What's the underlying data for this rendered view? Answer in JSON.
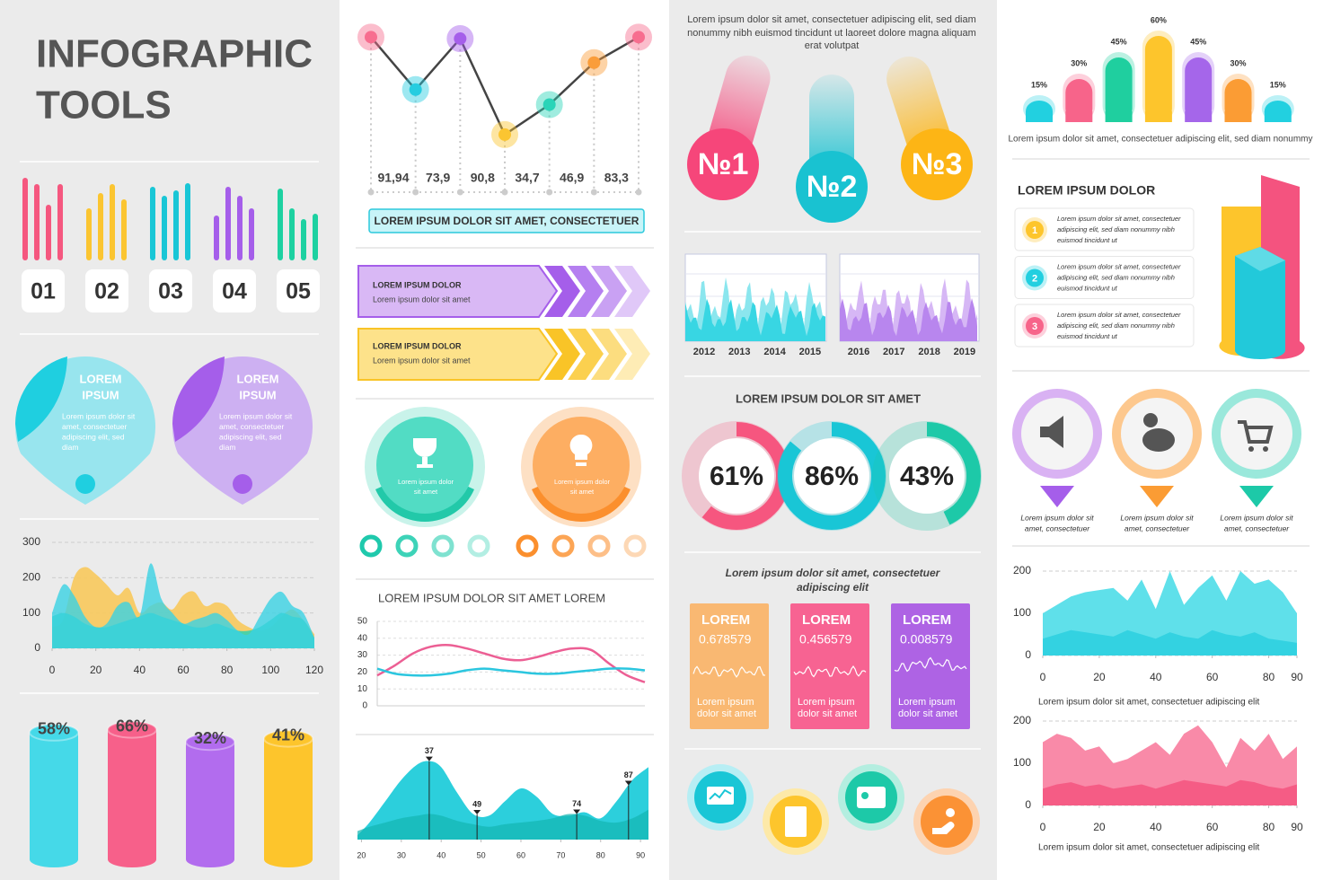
{
  "title_lines": [
    "INFOGRAPHIC",
    "TOOLS"
  ],
  "step_labels": [
    "01",
    "02",
    "03",
    "04",
    "05"
  ],
  "pins": [
    {
      "title_lines": [
        "LOREM",
        "IPSUM"
      ],
      "text_lines": [
        "Lorem ipsum dolor sit",
        "amet, consectetuer",
        "adipiscing elit, sed",
        "diam"
      ]
    },
    {
      "title_lines": [
        "LOREM",
        "IPSUM"
      ],
      "text_lines": [
        "Lorem ipsum dolor sit",
        "amet, consectetuer",
        "adipiscing elit, sed",
        "diam"
      ]
    }
  ],
  "area_chart": {
    "type": "area",
    "x": [
      0,
      5,
      10,
      15,
      20,
      25,
      30,
      35,
      40,
      45,
      50,
      55,
      60,
      65,
      70,
      75,
      80,
      85,
      90,
      95,
      100,
      105,
      110,
      115,
      120
    ],
    "series": [
      {
        "color": "#f8c95c",
        "values": [
          60,
          80,
          200,
          230,
          210,
          180,
          150,
          170,
          100,
          120,
          130,
          110,
          150,
          160,
          120,
          130,
          120,
          80,
          60,
          50,
          60,
          90,
          110,
          80,
          40
        ]
      },
      {
        "color": "#2fd1b0",
        "values": [
          90,
          100,
          90,
          70,
          60,
          60,
          70,
          80,
          90,
          100,
          90,
          80,
          70,
          60,
          60,
          70,
          60,
          50,
          50,
          60,
          80,
          100,
          90,
          80,
          30
        ]
      },
      {
        "color": "#3ad2e4",
        "values": [
          100,
          180,
          150,
          90,
          60,
          70,
          120,
          130,
          90,
          240,
          140,
          100,
          70,
          80,
          90,
          100,
          80,
          50,
          40,
          90,
          140,
          160,
          120,
          100,
          30
        ]
      }
    ],
    "xlim": [
      0,
      120
    ],
    "ylim": [
      0,
      300
    ],
    "xticks": [
      0,
      20,
      40,
      60,
      80,
      100,
      120
    ],
    "yticks": [
      0,
      100,
      200,
      300
    ],
    "grid": true
  },
  "cylinders": {
    "type": "bar",
    "values": [
      58,
      66,
      32,
      41
    ],
    "value_labels": [
      "58%",
      "66%",
      "32%",
      "41%"
    ],
    "colors": [
      "#45d9e8",
      "#f7608a",
      "#b26cee",
      "#fdc52c"
    ]
  },
  "point_line": {
    "type": "line",
    "values": [
      95,
      60,
      94,
      30,
      50,
      78,
      95
    ],
    "ylim": [
      0,
      100
    ],
    "colors": [
      "#f76d8f",
      "#26cde0",
      "#a55eea",
      "#fbc531",
      "#2ad4b8",
      "#fa9d3a",
      "#f76d8f"
    ],
    "readouts": [
      "91,94",
      "73,9",
      "90,8",
      "34,7",
      "46,9",
      "83,3"
    ]
  },
  "banner": "LOREM IPSUM DOLOR SIT AMET, CONSECTETUER",
  "arrows": [
    {
      "title": "LOREM IPSUM DOLOR",
      "text": "Lorem ipsum dolor sit amet"
    },
    {
      "title": "LOREM IPSUM DOLOR",
      "text": "Lorem ipsum dolor sit amet"
    }
  ],
  "badges": [
    {
      "text_lines": [
        "Lorem ipsum dolor",
        "sit amet"
      ]
    },
    {
      "text_lines": [
        "Lorem ipsum dolor",
        "sit amet"
      ]
    }
  ],
  "wave_chart": {
    "type": "line",
    "title": "LOREM IPSUM DOLOR SIT AMET LOREM",
    "series": [
      {
        "color": "#ec5f94",
        "values": [
          18,
          24,
          31,
          35,
          36,
          34,
          31,
          28,
          27,
          29,
          32,
          34,
          33,
          25,
          18,
          14
        ]
      },
      {
        "color": "#2bc6df",
        "values": [
          22,
          19,
          18,
          18,
          19,
          21,
          22,
          21,
          20,
          19,
          19,
          20,
          21,
          22,
          22,
          21
        ]
      }
    ],
    "ylim": [
      0,
      50
    ],
    "yticks": [
      0,
      10,
      20,
      30,
      40,
      50
    ],
    "grid": true
  },
  "peak_chart": {
    "type": "area",
    "x": [
      19,
      22,
      26,
      30,
      34,
      37,
      40,
      44,
      48,
      52,
      56,
      60,
      64,
      68,
      72,
      76,
      80,
      84,
      88,
      92
    ],
    "series": [
      {
        "color": "#2ccfdc",
        "values": [
          5,
          20,
          45,
          70,
          88,
          92,
          85,
          55,
          30,
          28,
          45,
          60,
          50,
          30,
          28,
          32,
          25,
          45,
          70,
          85
        ]
      },
      {
        "color": "#13b5b0",
        "values": [
          10,
          15,
          20,
          25,
          28,
          30,
          28,
          22,
          18,
          15,
          18,
          20,
          22,
          25,
          30,
          28,
          22,
          20,
          25,
          35
        ]
      }
    ],
    "xlim": [
      19,
      92
    ],
    "ylim": [
      0,
      100
    ],
    "xticks": [
      20,
      30,
      40,
      50,
      60,
      70,
      80,
      90
    ],
    "markers": [
      37,
      49,
      74,
      87
    ]
  },
  "intro_lines": [
    "Lorem ipsum dolor sit amet, consectetuer adipiscing elit, sed diam",
    "nonummy nibh euismod tincidunt ut laoreet dolore magna aliquam",
    "erat volutpat"
  ],
  "ranks": [
    "№1",
    "№2",
    "№3"
  ],
  "year_charts": [
    {
      "categories": [
        "2012",
        "2013",
        "2014",
        "2015"
      ]
    },
    {
      "categories": [
        "2016",
        "2017",
        "2018",
        "2019"
      ]
    }
  ],
  "donuts": {
    "type": "pie",
    "title": "LOREM IPSUM DOLOR SIT AMET",
    "values": [
      61,
      86,
      43
    ],
    "value_labels": [
      "61%",
      "86%",
      "43%"
    ],
    "colors": [
      "#f6567f",
      "#19c6d6",
      "#1dc9a8"
    ]
  },
  "cards": {
    "heading_lines": [
      "Lorem ipsum dolor sit amet, consectetuer",
      "adipiscing elit"
    ],
    "items": [
      {
        "title": "LOREM",
        "value": "0.678579",
        "text_lines": [
          "Lorem ipsum",
          "dolor sit amet"
        ],
        "color": "#f9b872"
      },
      {
        "title": "LOREM",
        "value": "0.456579",
        "text_lines": [
          "Lorem ipsum",
          "dolor sit amet"
        ],
        "color": "#f76392"
      },
      {
        "title": "LOREM",
        "value": "0.008579",
        "text_lines": [
          "Lorem ipsum",
          "dolor sit amet"
        ],
        "color": "#ae63e4"
      }
    ]
  },
  "percent_bars": {
    "type": "bar",
    "values": [
      15,
      30,
      45,
      60,
      45,
      30,
      15
    ],
    "value_labels": [
      "15%",
      "30%",
      "45%",
      "60%",
      "45%",
      "30%",
      "15%"
    ],
    "colors": [
      "#22d0e0",
      "#f7648a",
      "#1fcf9f",
      "#fdc52c",
      "#a566ea",
      "#fb9c34",
      "#22d0e0"
    ],
    "caption": "Lorem ipsum dolor sit amet, consectetuer adipiscing elit, sed diam nonummy"
  },
  "steps_list": {
    "title": "LOREM IPSUM DOLOR",
    "items": [
      {
        "number": "1",
        "color": "#fdc52c",
        "text_lines": [
          "Lorem ipsum dolor sit amet, consectetuer",
          "adipiscing elit, sed diam nonummy nibh",
          "euismod tincidunt ut"
        ]
      },
      {
        "number": "2",
        "color": "#22cfe0",
        "text_lines": [
          "Lorem ipsum dolor sit amet, consectetuer",
          "adipiscing elit, sed diam nonummy nibh",
          "euismod tincidunt ut"
        ]
      },
      {
        "number": "3",
        "color": "#f7648a",
        "text_lines": [
          "Lorem ipsum dolor sit amet, consectetuer",
          "adipiscing elit, sed diam nonummy nibh",
          "euismod tincidunt ut"
        ]
      }
    ]
  },
  "pin_icons": {
    "captions": [
      [
        "Lorem ipsum dolor sit",
        "amet, consectetuer"
      ],
      [
        "Lorem ipsum dolor sit",
        "amet, consectetuer"
      ],
      [
        "Lorem ipsum dolor sit",
        "amet, consectetuer"
      ]
    ]
  },
  "area_charts": [
    {
      "type": "area",
      "x": [
        0,
        5,
        10,
        15,
        20,
        25,
        30,
        35,
        40,
        45,
        50,
        55,
        60,
        65,
        70,
        75,
        80,
        85,
        90
      ],
      "series": [
        {
          "color": "#5fe0ea",
          "values": [
            100,
            120,
            140,
            150,
            155,
            160,
            130,
            180,
            110,
            200,
            120,
            160,
            190,
            130,
            200,
            170,
            180,
            150,
            100
          ]
        },
        {
          "color": "#2ccfdf",
          "values": [
            40,
            50,
            60,
            55,
            50,
            45,
            60,
            50,
            40,
            55,
            45,
            40,
            60,
            50,
            45,
            55,
            40,
            35,
            30
          ]
        }
      ],
      "xlim": [
        0,
        90
      ],
      "ylim": [
        0,
        200
      ],
      "xticks": [
        0,
        20,
        40,
        60,
        80,
        90
      ],
      "yticks": [
        0,
        100,
        200
      ],
      "grid": true,
      "caption": "Lorem ipsum dolor sit amet, consectetuer adipiscing elit"
    },
    {
      "type": "area",
      "x": [
        0,
        5,
        10,
        15,
        20,
        25,
        30,
        35,
        40,
        45,
        50,
        55,
        60,
        65,
        70,
        75,
        80,
        85,
        90
      ],
      "series": [
        {
          "color": "#f98aa8",
          "values": [
            150,
            170,
            160,
            130,
            140,
            100,
            110,
            130,
            150,
            120,
            170,
            190,
            150,
            90,
            160,
            130,
            170,
            110,
            140
          ]
        },
        {
          "color": "#f4537f",
          "values": [
            40,
            50,
            55,
            45,
            50,
            40,
            45,
            50,
            40,
            50,
            60,
            55,
            50,
            45,
            60,
            55,
            45,
            40,
            50
          ]
        }
      ],
      "xlim": [
        0,
        90
      ],
      "ylim": [
        0,
        200
      ],
      "xticks": [
        0,
        20,
        40,
        60,
        80,
        90
      ],
      "yticks": [
        0,
        100,
        200
      ],
      "grid": true,
      "caption": "Lorem ipsum dolor sit amet, consectetuer adipiscing elit"
    }
  ]
}
